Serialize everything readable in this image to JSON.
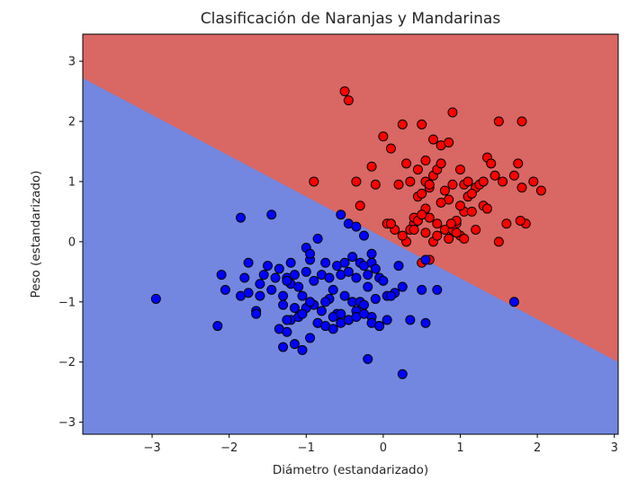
{
  "chart_data": {
    "type": "scatter",
    "title": "Clasificación de Naranjas y Mandarinas",
    "xlabel": "Diámetro (estandarizado)",
    "ylabel": "Peso (estandarizado)",
    "xlim": [
      -3.9,
      3.05
    ],
    "ylim": [
      -3.2,
      3.45
    ],
    "xticks": [
      -3,
      -2,
      -1,
      0,
      1,
      2,
      3
    ],
    "yticks": [
      -3,
      -2,
      -1,
      0,
      1,
      2,
      3
    ],
    "xtick_labels": [
      "−3",
      "−2",
      "−1",
      "0",
      "1",
      "2",
      "3"
    ],
    "ytick_labels": [
      "−3",
      "−2",
      "−1",
      "0",
      "1",
      "2",
      "3"
    ],
    "grid": false,
    "decision_boundary": {
      "line_points": [
        [
          -3.9,
          2.72
        ],
        [
          3.05,
          -2.0
        ]
      ],
      "region_above_color": "#d96763",
      "region_below_color": "#7387e0"
    },
    "series": [
      {
        "color": "#ff0000",
        "edgecolor": "#000000",
        "x": [
          -0.5,
          -0.45,
          -0.9,
          -0.35,
          0.0,
          0.1,
          0.25,
          0.5,
          0.55,
          0.65,
          0.75,
          0.85,
          0.9,
          0.3,
          0.35,
          0.45,
          0.2,
          -0.1,
          -0.15,
          -0.3,
          0.05,
          0.15,
          0.4,
          0.6,
          0.7,
          0.8,
          0.95,
          1.0,
          1.05,
          1.1,
          1.2,
          1.25,
          1.3,
          1.35,
          1.4,
          1.45,
          1.5,
          1.55,
          1.7,
          1.75,
          1.8,
          1.85,
          1.95,
          2.05,
          1.78,
          1.8,
          0.45,
          0.5,
          0.55,
          0.6,
          0.65,
          0.7,
          0.75,
          0.8,
          0.85,
          0.9,
          1.0,
          1.05,
          1.1,
          1.15,
          1.3,
          1.35,
          1.5,
          1.6,
          0.3,
          0.35,
          0.4,
          0.5,
          0.6,
          0.85,
          0.95,
          1.0,
          1.15,
          1.2,
          0.65,
          0.7,
          0.55,
          0.45,
          0.25,
          0.1,
          0.55,
          0.5,
          0.6,
          0.75,
          0.9,
          1.05,
          0.88,
          0.95,
          0.4
        ],
        "y": [
          2.5,
          2.35,
          1.0,
          1.0,
          1.75,
          1.55,
          1.95,
          1.95,
          1.35,
          1.7,
          1.6,
          1.65,
          2.15,
          1.3,
          1.0,
          1.2,
          0.95,
          0.95,
          1.25,
          0.6,
          0.3,
          0.2,
          0.3,
          0.4,
          0.3,
          0.2,
          0.3,
          0.1,
          0.5,
          0.75,
          0.9,
          0.95,
          1.0,
          1.4,
          1.3,
          1.1,
          2.0,
          1.0,
          1.1,
          1.3,
          0.9,
          0.3,
          1.0,
          0.85,
          0.35,
          2.0,
          0.75,
          0.8,
          0.55,
          0.9,
          1.1,
          1.2,
          1.3,
          0.85,
          0.7,
          0.95,
          1.2,
          0.95,
          1.0,
          0.8,
          0.6,
          0.55,
          0.0,
          0.3,
          -0.0,
          0.2,
          0.4,
          -0.35,
          -0.3,
          0.05,
          0.35,
          0.6,
          0.5,
          0.2,
          0.0,
          0.1,
          0.15,
          0.35,
          0.1,
          0.3,
          1.0,
          0.45,
          0.95,
          0.65,
          0.2,
          0.05,
          0.3,
          0.15,
          0.2
        ]
      },
      {
        "color": "#0000ff",
        "edgecolor": "#000000",
        "x": [
          -2.95,
          -2.1,
          -2.05,
          -1.85,
          -1.8,
          -1.75,
          -1.65,
          -1.6,
          -1.55,
          -1.5,
          -1.45,
          -1.4,
          -1.35,
          -1.3,
          -1.25,
          -1.2,
          -1.15,
          -1.1,
          -1.05,
          -1.0,
          -0.95,
          -0.9,
          -0.85,
          -0.8,
          -0.75,
          -0.7,
          -0.65,
          -0.6,
          -0.55,
          -0.5,
          -0.45,
          -0.4,
          -0.35,
          -0.3,
          -0.25,
          -0.2,
          -0.15,
          -0.1,
          -0.05,
          0.05,
          0.15,
          0.25,
          0.35,
          0.55,
          0.7,
          1.7,
          -1.45,
          -1.85,
          -1.6,
          -1.3,
          -1.2,
          -1.1,
          -1.0,
          -0.9,
          -0.8,
          -0.7,
          -0.6,
          -0.5,
          -0.4,
          -0.3,
          -0.2,
          -0.1,
          0.0,
          0.1,
          0.2,
          -1.25,
          -1.15,
          -1.05,
          -0.95,
          -0.85,
          -0.75,
          -0.65,
          -0.55,
          -0.45,
          -0.35,
          -0.25,
          -0.15,
          -0.05,
          -1.35,
          -1.25,
          -1.15,
          -1.05,
          -0.95,
          -0.85,
          -0.75,
          -0.65,
          -0.55,
          -0.45,
          -0.35,
          -0.25,
          -0.15,
          -0.05,
          0.05,
          -0.45,
          -0.35,
          -0.25,
          -0.15,
          0.5,
          0.55,
          -2.15,
          -1.3,
          -0.2,
          0.25,
          -1.2,
          -1.25,
          -1.0,
          -0.55,
          -1.65,
          -1.75,
          -0.95
        ],
        "y": [
          -0.95,
          -0.55,
          -0.8,
          -0.9,
          -0.6,
          -0.85,
          -1.15,
          -0.7,
          -0.55,
          -0.4,
          -0.8,
          -0.6,
          -0.45,
          -0.9,
          -0.6,
          -0.7,
          -0.55,
          -0.75,
          -0.9,
          -0.5,
          -0.3,
          -0.65,
          0.05,
          -0.55,
          -0.35,
          -0.6,
          -0.8,
          -0.4,
          -0.55,
          -0.35,
          -0.5,
          -0.25,
          -0.6,
          -0.35,
          -0.4,
          -0.55,
          -0.35,
          -0.45,
          -0.6,
          -0.9,
          -0.85,
          -0.75,
          -1.3,
          -1.35,
          -0.8,
          -1.0,
          0.45,
          0.4,
          -0.9,
          -1.05,
          -1.3,
          -1.25,
          -1.1,
          -1.05,
          -1.15,
          -0.95,
          -1.2,
          -0.9,
          -1.0,
          -1.0,
          -0.75,
          -0.95,
          -0.65,
          -0.9,
          -0.4,
          -1.3,
          -1.1,
          -1.2,
          -1.0,
          -1.35,
          -1.0,
          -1.25,
          -1.2,
          -1.3,
          -1.15,
          -1.05,
          -1.25,
          -1.4,
          -1.45,
          -1.5,
          -1.7,
          -1.8,
          -1.6,
          -1.35,
          -1.4,
          -1.45,
          -1.35,
          -1.3,
          -1.25,
          -1.2,
          -1.35,
          -1.4,
          -1.3,
          0.3,
          0.25,
          0.1,
          -0.2,
          -0.8,
          -0.3,
          -1.4,
          -1.75,
          -1.95,
          -2.2,
          -0.35,
          -0.65,
          -0.1,
          0.45,
          -1.2,
          -0.35,
          -0.2
        ]
      }
    ]
  }
}
